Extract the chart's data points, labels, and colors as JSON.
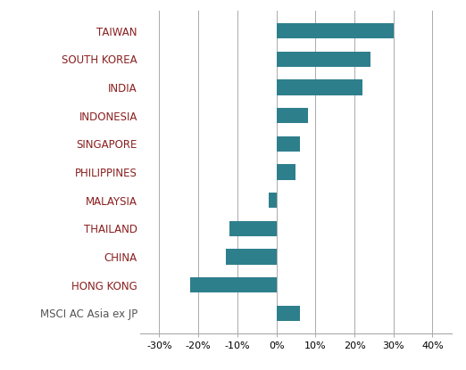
{
  "categories": [
    "TAIWAN",
    "SOUTH KOREA",
    "INDIA",
    "INDONESIA",
    "SINGAPORE",
    "PHILIPPINES",
    "MALAYSIA",
    "THAILAND",
    "CHINA",
    "HONG KONG",
    "MSCI AC Asia ex JP"
  ],
  "values": [
    30,
    24,
    22,
    8,
    6,
    5,
    -2,
    -12,
    -13,
    -22,
    6
  ],
  "bar_color": "#2e7f8c",
  "highlight_labels": [
    "TAIWAN",
    "SOUTH KOREA",
    "INDIA",
    "INDONESIA",
    "SINGAPORE",
    "PHILIPPINES",
    "MALAYSIA",
    "THAILAND",
    "CHINA",
    "HONG KONG"
  ],
  "highlight_color": "#8B2020",
  "normal_color": "#555555",
  "xlim": [
    -35,
    45
  ],
  "xticks": [
    -30,
    -20,
    -10,
    0,
    10,
    20,
    30,
    40
  ],
  "xtick_labels": [
    "-30%",
    "-20%",
    "-10%",
    "0%",
    "10%",
    "20%",
    "30%",
    "40%"
  ],
  "background_color": "#ffffff",
  "grid_color": "#aaaaaa",
  "bar_height": 0.55,
  "label_fontsize": 8.5,
  "tick_fontsize": 8.0
}
